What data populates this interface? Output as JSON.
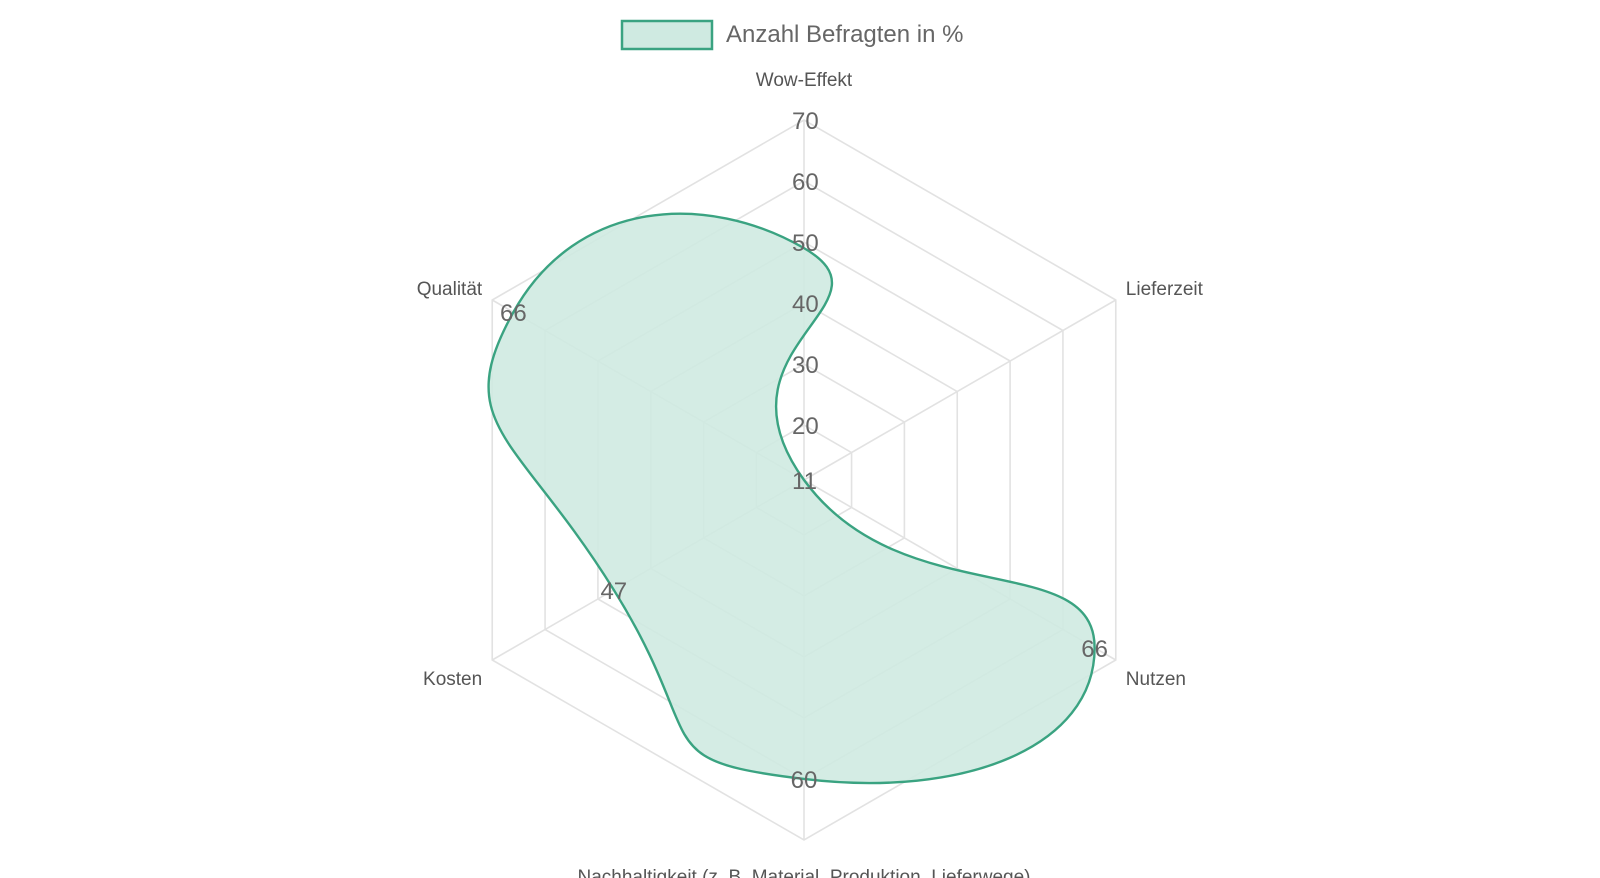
{
  "chart_data": {
    "type": "radar",
    "categories": [
      "Wow-Effekt",
      "Lieferzeit",
      "Nutzen",
      "Nachhaltigkeit (z. B. Material, Produktion, Lieferwege)",
      "Kosten",
      "Qualität"
    ],
    "series": [
      {
        "name": "Anzahl Befragten in %",
        "values": [
          49,
          11,
          66,
          60,
          47,
          66
        ],
        "stroke_color": "#3aa381",
        "fill_color": "#cfeae1"
      }
    ],
    "r_ticks": [
      11,
      20,
      30,
      40,
      50,
      60,
      70
    ],
    "r_range": [
      11,
      70
    ],
    "legend_position": "top",
    "grid": true,
    "data_labels": [
      "49",
      "11",
      "66",
      "60",
      "47",
      "66"
    ]
  }
}
